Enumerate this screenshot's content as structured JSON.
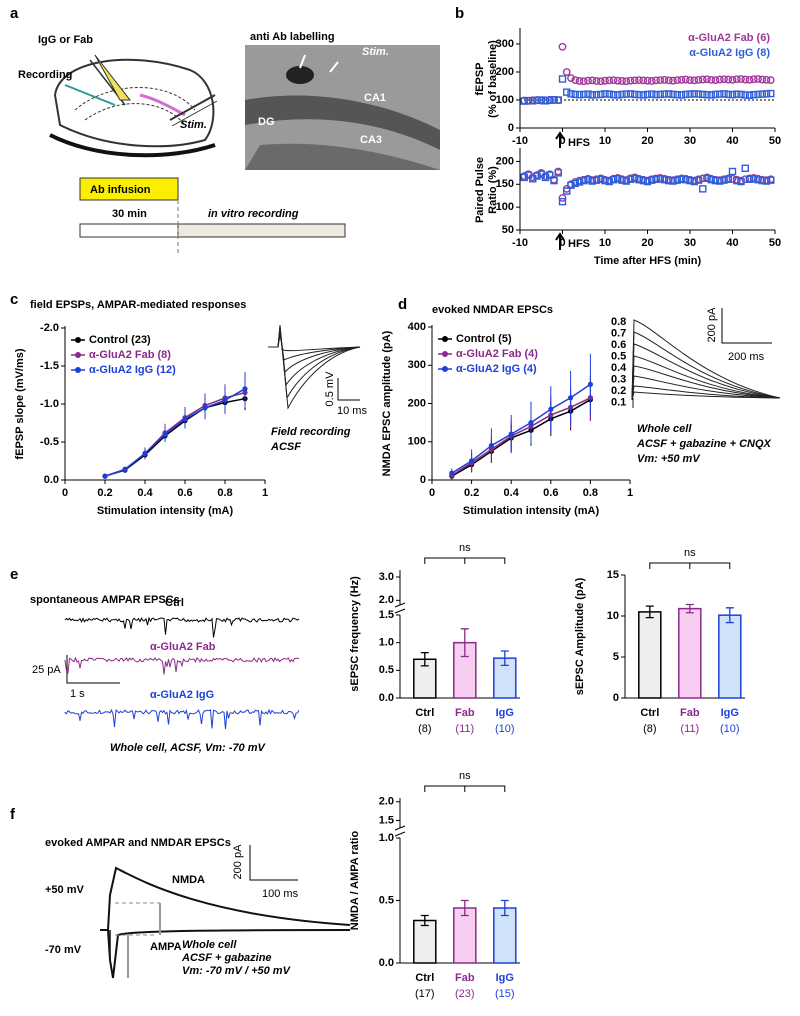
{
  "panel_labels": [
    "a",
    "b",
    "c",
    "d",
    "e",
    "f"
  ],
  "panel_a": {
    "title": "anti Ab labelling",
    "labels": [
      "IgG or Fab",
      "Recording",
      "Stim.",
      "Stim.",
      "DG",
      "CA1",
      "CA3"
    ],
    "timeline": [
      "Ab infusion",
      "30 min",
      "in vitro recording"
    ]
  },
  "panel_e": {
    "title": "spontaneous AMPAR EPSCs",
    "traces": [
      "Ctrl",
      "α-GluA2 Fab",
      "α-GluA2 IgG"
    ],
    "scale": [
      "25 pA",
      "1 s"
    ],
    "note": "Whole cell, ACSF, Vm: -70 mV"
  },
  "panel_f": {
    "title": "evoked AMPAR and NMDAR EPSCs",
    "labels": [
      "+50 mV",
      "-70 mV",
      "NMDA",
      "AMPA"
    ],
    "scale": [
      "200 pA",
      "100 ms"
    ],
    "note": [
      "Whole cell",
      "ACSF + gabazine",
      "Vm: -70 mV / +50 mV"
    ]
  },
  "chart_data": [
    {
      "type": "scatter",
      "ylabel": [
        "fEPSP",
        "(% of baseline)"
      ],
      "legend": "upper right",
      "reference_line": 100,
      "annotations": [
        "HFS"
      ],
      "x": [
        -9,
        -8,
        -7,
        -6,
        -5,
        -4,
        -3,
        -2,
        -1,
        0,
        1,
        2,
        3,
        4,
        5,
        6,
        7,
        8,
        9,
        10,
        11,
        12,
        13,
        14,
        15,
        16,
        17,
        18,
        19,
        20,
        21,
        22,
        23,
        24,
        25,
        26,
        27,
        28,
        29,
        30,
        31,
        32,
        33,
        34,
        35,
        36,
        37,
        38,
        39,
        40,
        41,
        42,
        43,
        44,
        45,
        46,
        47,
        48,
        49
      ],
      "xlim": [
        -10,
        50
      ],
      "xticks": [
        -10,
        0,
        10,
        20,
        30,
        40,
        50
      ],
      "ylim": [
        0,
        350
      ],
      "yticks": [
        0,
        100,
        200,
        300
      ],
      "series": [
        {
          "name": "α-GluA2 Fab (6)",
          "color": "#a0369a",
          "marker": "circle",
          "values": [
            98,
            97,
            99,
            100,
            98,
            99,
            101,
            100,
            99,
            290,
            200,
            178,
            171,
            168,
            167,
            169,
            170,
            168,
            167,
            169,
            170,
            171,
            169,
            168,
            167,
            169,
            170,
            171,
            170,
            169,
            168,
            170,
            171,
            172,
            170,
            169,
            171,
            172,
            173,
            171,
            170,
            172,
            173,
            174,
            172,
            171,
            173,
            174,
            173,
            172,
            174,
            175,
            173,
            172,
            174,
            175,
            173,
            172,
            171
          ]
        },
        {
          "name": "α-GluA2 IgG (8)",
          "color": "#2f5fd8",
          "marker": "square",
          "values": [
            96,
            98,
            97,
            99,
            100,
            97,
            99,
            101,
            100,
            175,
            128,
            122,
            120,
            119,
            120,
            121,
            118,
            119,
            120,
            122,
            121,
            119,
            118,
            120,
            121,
            122,
            120,
            119,
            118,
            120,
            121,
            119,
            120,
            121,
            122,
            120,
            119,
            118,
            120,
            121,
            122,
            121,
            120,
            119,
            118,
            120,
            121,
            122,
            120,
            119,
            121,
            120,
            118,
            117,
            119,
            120,
            121,
            122,
            123
          ]
        }
      ]
    },
    {
      "type": "scatter",
      "ylabel": [
        "Paired Pulse",
        "Ratio (%)"
      ],
      "xlabel": "Time after HFS (min)",
      "annotations": [
        "HFS"
      ],
      "x": [
        -9,
        -8,
        -7,
        -6,
        -5,
        -4,
        -3,
        -2,
        -1,
        0,
        1,
        2,
        3,
        4,
        5,
        6,
        7,
        8,
        9,
        10,
        11,
        12,
        13,
        14,
        15,
        16,
        17,
        18,
        19,
        20,
        21,
        22,
        23,
        24,
        25,
        26,
        27,
        28,
        29,
        30,
        31,
        32,
        33,
        34,
        35,
        36,
        37,
        38,
        39,
        40,
        41,
        42,
        43,
        44,
        45,
        46,
        47,
        48,
        49
      ],
      "xlim": [
        -10,
        50
      ],
      "xticks": [
        -10,
        0,
        10,
        20,
        30,
        40,
        50
      ],
      "ylim": [
        50,
        225
      ],
      "yticks": [
        50,
        100,
        150,
        200
      ],
      "series": [
        {
          "color": "#a0369a",
          "marker": "circle",
          "values": [
            168,
            172,
            165,
            170,
            175,
            168,
            172,
            160,
            178,
            120,
            140,
            150,
            155,
            158,
            160,
            162,
            159,
            161,
            163,
            160,
            158,
            162,
            164,
            161,
            159,
            163,
            165,
            162,
            160,
            158,
            161,
            163,
            164,
            162,
            160,
            159,
            161,
            163,
            162,
            160,
            158,
            161,
            163,
            165,
            162,
            160,
            159,
            161,
            163,
            162,
            160,
            158,
            161,
            163,
            164,
            162,
            160,
            159,
            161
          ]
        },
        {
          "color": "#2f5fd8",
          "marker": "square",
          "values": [
            165,
            170,
            162,
            168,
            172,
            165,
            170,
            158,
            175,
            112,
            135,
            148,
            152,
            155,
            158,
            160,
            157,
            159,
            161,
            158,
            156,
            160,
            162,
            159,
            157,
            161,
            163,
            160,
            158,
            156,
            159,
            161,
            162,
            160,
            158,
            157,
            159,
            161,
            160,
            158,
            156,
            159,
            140,
            163,
            160,
            158,
            157,
            159,
            161,
            178,
            158,
            156,
            185,
            161,
            162,
            160,
            158,
            157,
            159
          ]
        }
      ]
    },
    {
      "type": "line",
      "title": "field EPSPs, AMPAR-mediated responses",
      "xlabel": "Stimulation intensity (mA)",
      "ylabel": "fEPSP slope (mV/ms)",
      "legend": "upper left",
      "annotations": [
        "0.5 mV",
        "10 ms",
        "Field recording",
        "ACSF"
      ],
      "x": [
        0.2,
        0.3,
        0.4,
        0.5,
        0.6,
        0.7,
        0.8,
        0.9
      ],
      "xlim": [
        0,
        1
      ],
      "xticks": [
        0,
        0.2,
        0.4,
        0.6,
        0.8,
        1
      ],
      "ylim": [
        0,
        -2
      ],
      "yticks": [
        {
          "value": -2,
          "label": "-2.0"
        },
        -1.5,
        {
          "value": -1,
          "label": "-1.0"
        },
        -0.5,
        {
          "value": 0,
          "label": "0.0"
        }
      ],
      "series": [
        {
          "name": "Control (23)",
          "color": "#000000",
          "values": [
            -0.05,
            -0.13,
            -0.33,
            -0.58,
            -0.78,
            -0.95,
            -1.02,
            -1.07
          ],
          "errors": [
            0.02,
            0.03,
            0.06,
            0.08,
            0.1,
            0.12,
            0.14,
            0.15
          ]
        },
        {
          "name": "α-GluA2 Fab (8)",
          "color": "#8b2a8b",
          "values": [
            -0.05,
            -0.14,
            -0.35,
            -0.62,
            -0.82,
            -0.98,
            -1.08,
            -1.15
          ],
          "errors": [
            0.02,
            0.04,
            0.08,
            0.12,
            0.14,
            0.16,
            0.18,
            0.2
          ]
        },
        {
          "name": "α-GluA2 IgG (12)",
          "color": "#1f3fdb",
          "values": [
            -0.05,
            -0.14,
            -0.35,
            -0.6,
            -0.8,
            -0.95,
            -1.05,
            -1.2
          ],
          "errors": [
            0.02,
            0.03,
            0.06,
            0.1,
            0.12,
            0.15,
            0.18,
            0.22
          ]
        }
      ]
    },
    {
      "type": "line",
      "title": "evoked NMDAR EPSCs",
      "xlabel": "Stimulation intensity (mA)",
      "ylabel": "NMDA EPSC amplitude (pA)",
      "legend": "upper left",
      "annotations": [
        "200 pA",
        "200 ms",
        "Whole cell",
        "ACSF + gabazine + CNQX",
        "Vm: +50 mV"
      ],
      "trace_labels": [
        0.8,
        0.7,
        0.6,
        0.5,
        0.4,
        0.3,
        0.2,
        0.1
      ],
      "x": [
        0.1,
        0.2,
        0.3,
        0.4,
        0.5,
        0.6,
        0.7,
        0.8
      ],
      "xlim": [
        0,
        1
      ],
      "xticks": [
        0,
        0.2,
        0.4,
        0.6,
        0.8,
        1
      ],
      "ylim": [
        0,
        400
      ],
      "yticks": [
        0,
        100,
        200,
        300,
        400
      ],
      "series": [
        {
          "name": "Control (5)",
          "color": "#000000",
          "values": [
            10,
            40,
            75,
            110,
            130,
            160,
            180,
            210
          ],
          "errors": [
            8,
            20,
            30,
            35,
            40,
            45,
            50,
            55
          ]
        },
        {
          "name": "α-GluA2 Fab (4)",
          "color": "#8b2a8b",
          "values": [
            12,
            45,
            80,
            115,
            140,
            170,
            190,
            215
          ],
          "errors": [
            10,
            25,
            35,
            40,
            45,
            50,
            55,
            60
          ]
        },
        {
          "name": "α-GluA2 IgG (4)",
          "color": "#1f3fdb",
          "values": [
            18,
            50,
            90,
            120,
            150,
            185,
            215,
            250
          ],
          "errors": [
            12,
            30,
            45,
            50,
            55,
            60,
            70,
            80
          ]
        }
      ]
    },
    {
      "type": "bar",
      "ylabel": "sEPSC frequency (Hz)",
      "annotations": [
        "ns"
      ],
      "categories": [
        "Ctrl",
        "Fab",
        "IgG"
      ],
      "n_labels": [
        "(8)",
        "(11)",
        "(10)"
      ],
      "values": [
        0.7,
        1.0,
        0.72
      ],
      "errors": [
        0.12,
        0.25,
        0.13
      ],
      "colors": [
        "#000000",
        "#8b2a8b",
        "#1f3fdb"
      ],
      "fills": [
        "#eeeeee",
        "#f7cdf1",
        "#cfe2f7"
      ],
      "ylim": [
        0,
        1.5
      ],
      "yticks": [
        {
          "value": 0,
          "label": "0.0"
        },
        0.5,
        {
          "value": 1,
          "label": "1.0"
        },
        1.5
      ],
      "upper_ylim": [
        1.8,
        3.3
      ],
      "upper_yticks": [
        {
          "value": 2,
          "label": "2.0"
        },
        {
          "value": 3,
          "label": "3.0"
        }
      ]
    },
    {
      "type": "bar",
      "ylabel": "sEPSC Amplitude (pA)",
      "annotations": [
        "ns"
      ],
      "categories": [
        "Ctrl",
        "Fab",
        "IgG"
      ],
      "n_labels": [
        "(8)",
        "(11)",
        "(10)"
      ],
      "values": [
        10.5,
        10.9,
        10.1
      ],
      "errors": [
        0.7,
        0.5,
        0.9
      ],
      "colors": [
        "#000000",
        "#8b2a8b",
        "#1f3fdb"
      ],
      "fills": [
        "#eeeeee",
        "#f7cdf1",
        "#cfe2f7"
      ],
      "ylim": [
        0,
        15
      ],
      "yticks": [
        0,
        5,
        10,
        15
      ]
    },
    {
      "type": "bar",
      "ylabel": "NMDA / AMPA ratio",
      "annotations": [
        "ns"
      ],
      "categories": [
        "Ctrl",
        "Fab",
        "IgG"
      ],
      "n_labels": [
        "(17)",
        "(23)",
        "(15)"
      ],
      "values": [
        0.34,
        0.44,
        0.44
      ],
      "errors": [
        0.04,
        0.06,
        0.06
      ],
      "colors": [
        "#000000",
        "#8b2a8b",
        "#1f3fdb"
      ],
      "fills": [
        "#eeeeee",
        "#f7cdf1",
        "#cfe2f7"
      ],
      "ylim": [
        0,
        1
      ],
      "yticks": [
        {
          "value": 0,
          "label": "0.0"
        },
        0.5,
        {
          "value": 1,
          "label": "1.0"
        }
      ],
      "upper_ylim": [
        1.3,
        2.1
      ],
      "upper_yticks": [
        1.5,
        {
          "value": 2,
          "label": "2.0"
        }
      ]
    }
  ]
}
